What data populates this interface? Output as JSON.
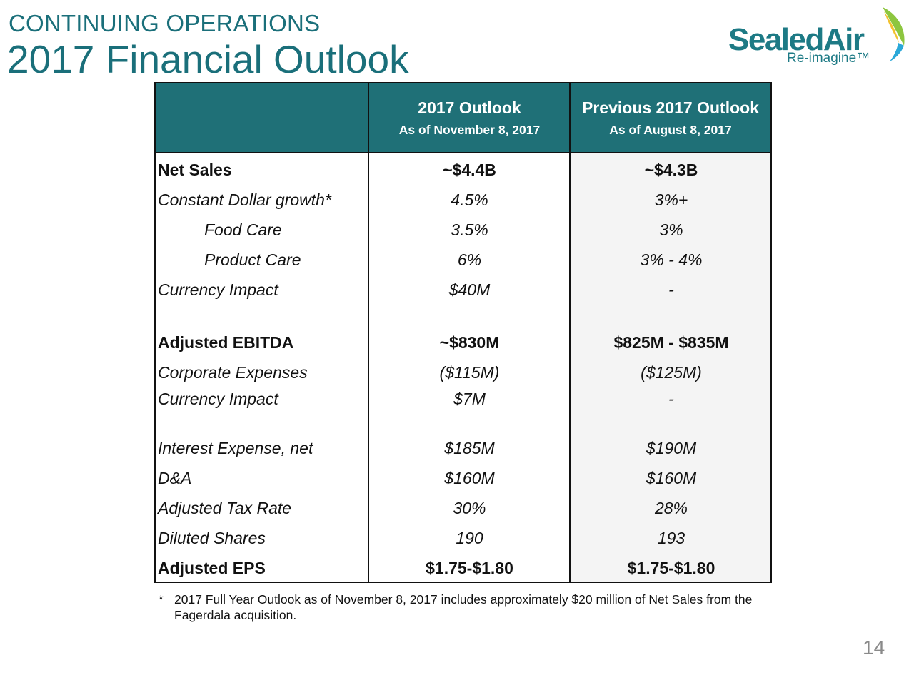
{
  "header": {
    "kicker": "CONTINUING OPERATIONS",
    "title": "2017 Financial Outlook"
  },
  "logo": {
    "word": "SealedAir",
    "tagline": "Re-imagine™",
    "colors": {
      "teal": "#1d7a85",
      "green": "#8dc63f",
      "blue": "#2aa8d8"
    }
  },
  "table": {
    "header_color": "#1f7077",
    "columns": [
      {
        "title": "",
        "subtitle": ""
      },
      {
        "title": "2017 Outlook",
        "subtitle": "As of November 8, 2017"
      },
      {
        "title": "Previous 2017 Outlook",
        "subtitle": "As of August 8, 2017"
      }
    ],
    "rows": [
      {
        "label": "Net Sales",
        "current": "~$4.4B",
        "previous": "~$4.3B",
        "style": "bold"
      },
      {
        "label": "Constant Dollar growth*",
        "current": "4.5%",
        "previous": "3%+",
        "style": "italic"
      },
      {
        "label": "Food Care",
        "current": "3.5%",
        "previous": "3%",
        "style": "italic-indent"
      },
      {
        "label": "Product Care",
        "current": "6%",
        "previous": "3% - 4%",
        "style": "italic-indent"
      },
      {
        "label": "Currency Impact",
        "current": "$40M",
        "previous": "-",
        "style": "italic"
      },
      {
        "label": "Adjusted EBITDA",
        "current": "~$830M",
        "previous": "$825M - $835M",
        "style": "bold"
      },
      {
        "label": "Corporate Expenses",
        "current": "($115M)",
        "previous": "($125M)",
        "style": "italic"
      },
      {
        "label": "Currency Impact",
        "current": "$7M",
        "previous": "-",
        "style": "italic"
      },
      {
        "label": "Interest Expense, net",
        "current": "$185M",
        "previous": "$190M",
        "style": "italic"
      },
      {
        "label": "D&A",
        "current": "$160M",
        "previous": "$160M",
        "style": "italic"
      },
      {
        "label": "Adjusted Tax Rate",
        "current": "30%",
        "previous": "28%",
        "style": "italic"
      },
      {
        "label": "Diluted Shares",
        "current": "190",
        "previous": "193",
        "style": "italic"
      },
      {
        "label": "Adjusted EPS",
        "current": "$1.75-$1.80",
        "previous": "$1.75-$1.80",
        "style": "bold"
      }
    ]
  },
  "footnote": {
    "marker": "*",
    "text": "2017 Full Year Outlook as of November 8, 2017 includes approximately $20 million of Net Sales from the Fagerdala acquisition."
  },
  "page_number": "14"
}
